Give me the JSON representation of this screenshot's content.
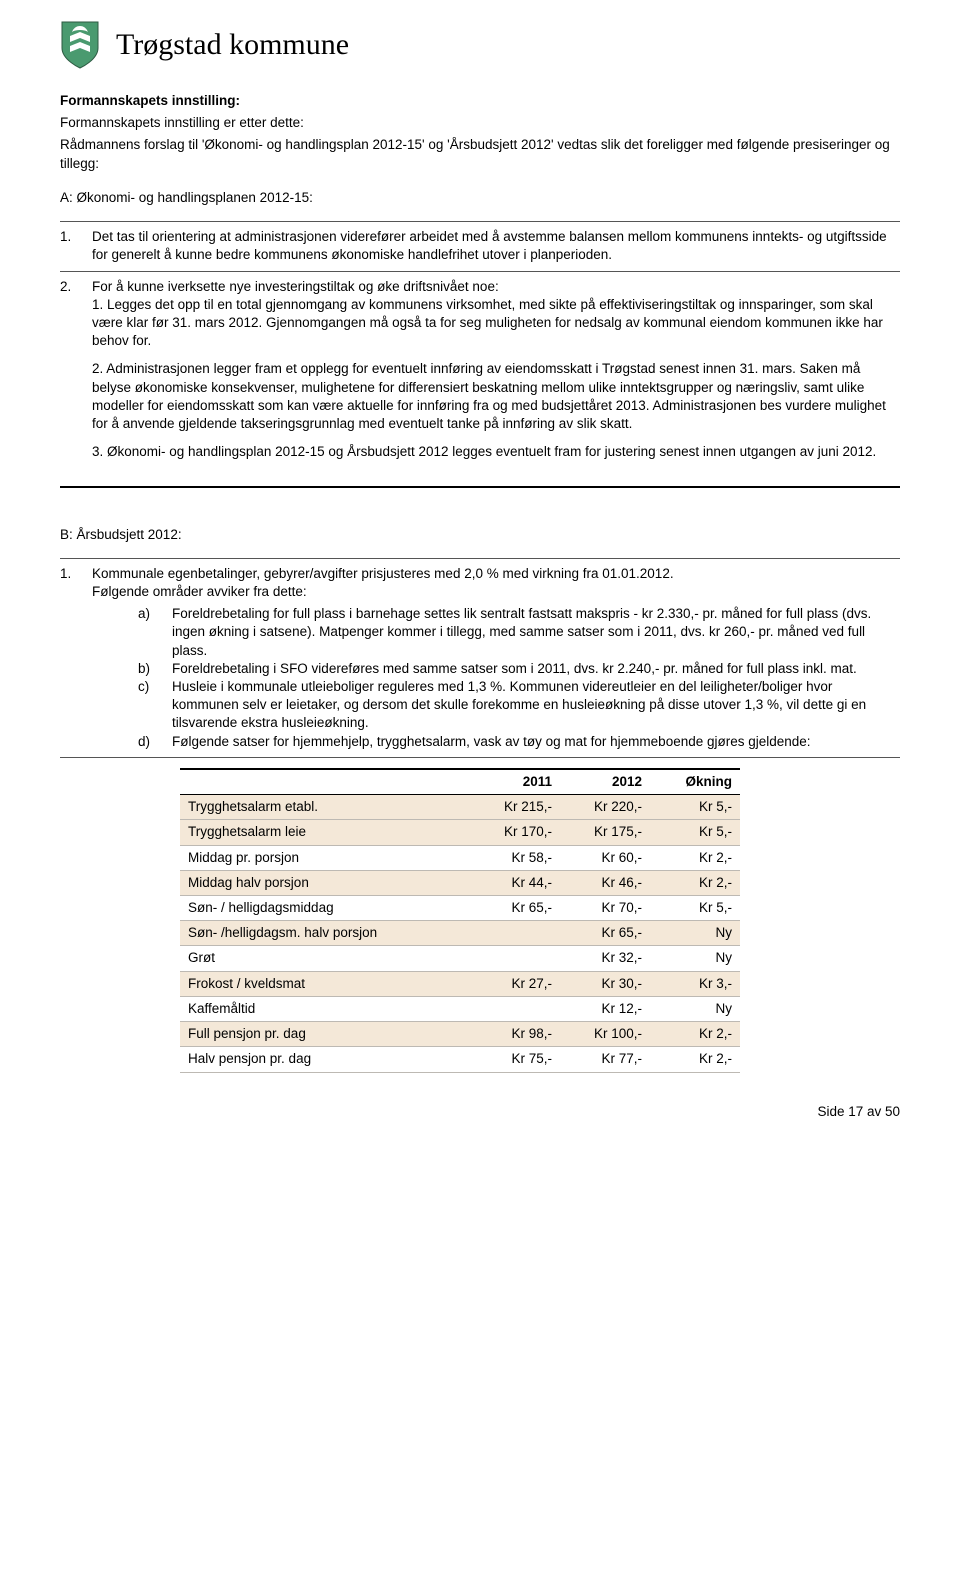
{
  "brand": "Trøgstad kommune",
  "heading": "Formannskapets innstilling:",
  "intro_line1": "Formannskapets innstilling er etter dette:",
  "intro_line2": "Rådmannens forslag til 'Økonomi- og handlingsplan 2012-15' og 'Årsbudsjett 2012' vedtas slik det foreligger med følgende presiseringer og tillegg:",
  "section_a_title": "A: Økonomi- og handlingsplanen 2012-15:",
  "a_item1_num": "1.",
  "a_item1_text": "Det tas til orientering at administrasjonen viderefører arbeidet med å avstemme balansen mellom kommunens inntekts- og utgiftsside for generelt å kunne bedre kommunens økonomiske handlefrihet utover i planperioden.",
  "a_item2_num": "2.",
  "a_item2_intro": "For å kunne iverksette nye investeringstiltak og øke driftsnivået noe:",
  "a_item2_sub1": "1. Legges det opp til en total gjennomgang av kommunens virksomhet, med sikte på effektiviseringstiltak og innsparinger, som skal være klar før 31. mars 2012. Gjennomgangen må også ta for seg muligheten for nedsalg av kommunal eiendom kommunen ikke har behov for.",
  "a_item2_sub2": "2. Administrasjonen legger fram et opplegg for eventuelt innføring av eiendomsskatt i Trøgstad senest innen 31. mars. Saken må belyse økonomiske konsekvenser, mulighetene for differensiert beskatning mellom ulike inntektsgrupper og næringsliv, samt ulike modeller for eiendomsskatt som kan være aktuelle for innføring fra og med budsjettåret 2013. Administrasjonen bes vurdere mulighet for å anvende gjeldende takseringsgrunnlag med eventuelt tanke på innføring av slik skatt.",
  "a_item2_sub3": "3. Økonomi- og handlingsplan 2012-15 og Årsbudsjett 2012 legges eventuelt fram for justering senest innen utgangen av juni 2012.",
  "section_b_title": "B: Årsbudsjett 2012:",
  "b_item1_num": "1.",
  "b_item1_line1": "Kommunale egenbetalinger, gebyrer/avgifter prisjusteres med 2,0 % med virkning fra 01.01.2012.",
  "b_item1_line2": "Følgende områder avviker fra dette:",
  "b_a_tag": "a)",
  "b_a_text": "Foreldrebetaling for full plass i barnehage settes lik sentralt fastsatt makspris - kr 2.330,- pr. måned for full plass (dvs. ingen økning i satsene). Matpenger kommer i tillegg, med samme satser som i 2011, dvs. kr 260,- pr. måned ved full plass.",
  "b_b_tag": "b)",
  "b_b_text": "Foreldrebetaling i SFO videreføres med samme satser som i 2011, dvs. kr 2.240,- pr. måned for full plass inkl. mat.",
  "b_c_tag": "c)",
  "b_c_text": "Husleie i kommunale utleieboliger reguleres med 1,3 %. Kommunen videreutleier en del leiligheter/boliger hvor kommunen selv er leietaker, og dersom det skulle forekomme en husleieøkning på disse utover 1,3 %, vil dette gi en tilsvarende ekstra husleieøkning.",
  "b_d_tag": "d)",
  "b_d_text": "Følgende satser for hjemmehjelp, trygghetsalarm, vask av tøy og mat for hjemmeboende gjøres gjeldende:",
  "table": {
    "headers": [
      "",
      "2011",
      "2012",
      "Økning"
    ],
    "rows": [
      [
        "Trygghetsalarm etabl.",
        "Kr 215,-",
        "Kr 220,-",
        "Kr 5,-"
      ],
      [
        "Trygghetsalarm leie",
        "Kr 170,-",
        "Kr 175,-",
        "Kr 5,-"
      ],
      [
        "Middag pr. porsjon",
        "Kr 58,-",
        "Kr 60,-",
        "Kr 2,-"
      ],
      [
        "Middag halv porsjon",
        "Kr 44,-",
        "Kr 46,-",
        "Kr 2,-"
      ],
      [
        "Søn- / helligdagsmiddag",
        "Kr 65,-",
        "Kr 70,-",
        "Kr 5,-"
      ],
      [
        "Søn- /helligdagsm. halv porsjon",
        "",
        "Kr 65,-",
        "Ny"
      ],
      [
        "Grøt",
        "",
        "Kr 32,-",
        "Ny"
      ],
      [
        "Frokost / kveldsmat",
        "Kr 27,-",
        "Kr 30,-",
        "Kr 3,-"
      ],
      [
        "Kaffemåltid",
        "",
        "Kr 12,-",
        "Ny"
      ],
      [
        "Full pensjon pr. dag",
        "Kr 98,-",
        "Kr 100,-",
        "Kr 2,-"
      ],
      [
        "Halv pensjon pr. dag",
        "Kr 75,-",
        "Kr 77,-",
        "Kr 2,-"
      ]
    ],
    "shaded_rows": [
      0,
      1,
      3,
      5,
      7,
      9
    ],
    "shade_color": "#f4e8d8"
  },
  "footer": "Side 17 av 50"
}
